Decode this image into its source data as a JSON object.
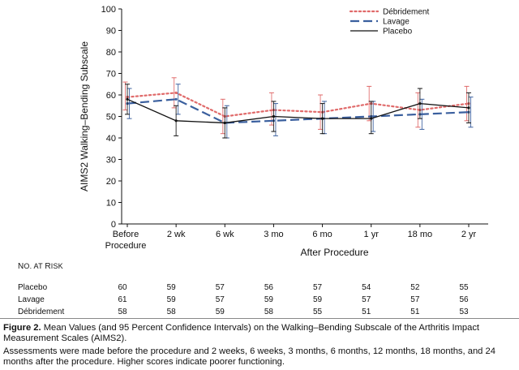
{
  "chart_data": {
    "type": "line",
    "ylabel": "AIMS2 Walking–Bending Subscale",
    "xlabel": "After Procedure",
    "ylim": [
      0,
      100
    ],
    "yticks": [
      0,
      10,
      20,
      30,
      40,
      50,
      60,
      70,
      80,
      90,
      100
    ],
    "categories": [
      "Before Procedure",
      "2 wk",
      "6 wk",
      "3 mo",
      "6 mo",
      "1 yr",
      "18 mo",
      "2 yr"
    ],
    "grid": false,
    "legend_position": "top-right",
    "error_bars": "95% confidence intervals",
    "series": [
      {
        "name": "Débridement",
        "style": "dotted",
        "color": "#e06a6a",
        "values": [
          59,
          61,
          50,
          53,
          52,
          56,
          53,
          56
        ],
        "lower": [
          53,
          54,
          42,
          46,
          44,
          48,
          45,
          48
        ],
        "upper": [
          66,
          68,
          58,
          61,
          60,
          64,
          61,
          64
        ]
      },
      {
        "name": "Lavage",
        "style": "dashed",
        "color": "#3a5f9e",
        "values": [
          56,
          58,
          47,
          48,
          49,
          50,
          51,
          52
        ],
        "lower": [
          49,
          51,
          40,
          41,
          42,
          43,
          44,
          45
        ],
        "upper": [
          63,
          65,
          55,
          56,
          57,
          57,
          58,
          59
        ]
      },
      {
        "name": "Placebo",
        "style": "solid",
        "color": "#111111",
        "values": [
          58,
          48,
          47,
          50,
          49,
          49,
          56,
          54
        ],
        "lower": [
          51,
          41,
          40,
          43,
          42,
          42,
          49,
          47
        ],
        "upper": [
          65,
          55,
          54,
          57,
          56,
          57,
          63,
          61
        ]
      }
    ]
  },
  "risk_table": {
    "heading_first_n": "N",
    "heading_rest_o": "O.",
    "heading_at": "AT",
    "heading_r": "R",
    "heading_isk": "ISK",
    "rows": [
      {
        "label": "Placebo",
        "values": [
          "60",
          "59",
          "57",
          "56",
          "57",
          "54",
          "52",
          "55"
        ]
      },
      {
        "label": "Lavage",
        "values": [
          "61",
          "59",
          "57",
          "59",
          "59",
          "57",
          "57",
          "56"
        ]
      },
      {
        "label": "Débridement",
        "values": [
          "58",
          "58",
          "59",
          "58",
          "55",
          "51",
          "51",
          "53"
        ]
      }
    ]
  },
  "caption": {
    "fig_label": "Figure 2.",
    "title": " Mean Values (and 95 Percent Confidence Intervals) on the Walking–Bending Subscale of the Arthritis Impact Measurement Scales (AIMS2).",
    "note": "Assessments were made before the procedure and 2 weeks, 6 weeks, 3 months, 6 months, 12 months, 18 months, and 24 months after the procedure. Higher scores indicate poorer functioning."
  }
}
